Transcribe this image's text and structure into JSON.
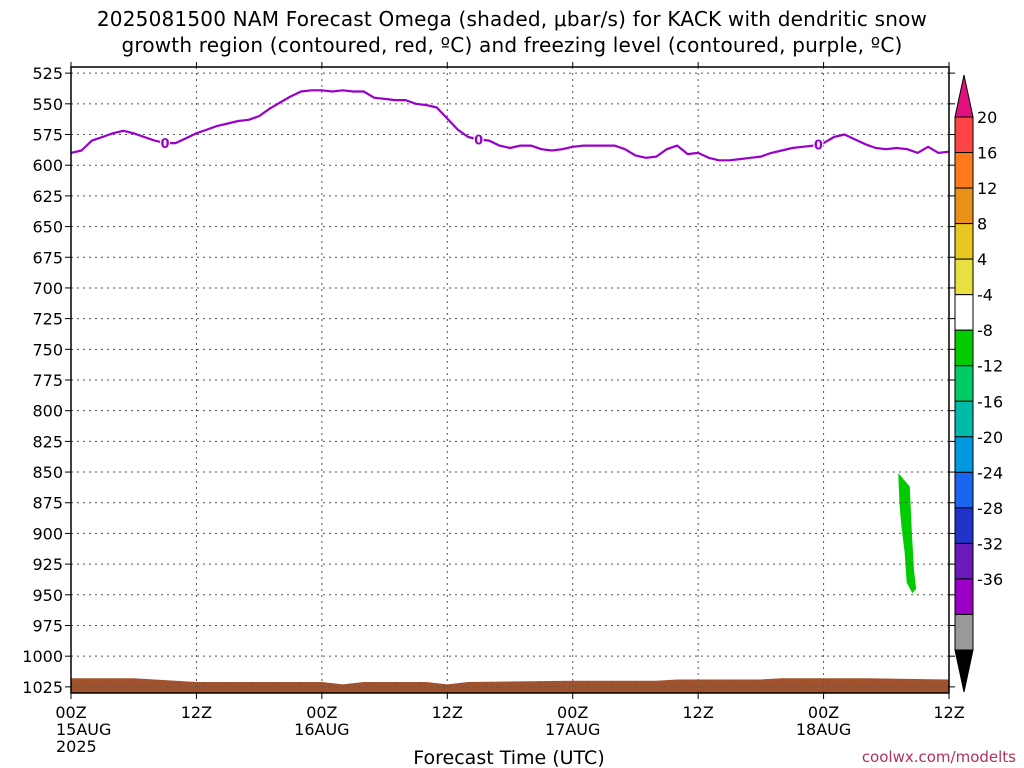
{
  "title_line1": "2025081500 NAM Forecast Omega (shaded, μbar/s) for KACK with dendritic snow",
  "title_line2": "growth region (contoured, red, ºC) and freezing level (contoured, purple, ºC)",
  "credit": "coolwx.com/modelts",
  "chart_data": {
    "type": "contour",
    "xlabel": "Forecast Time (UTC)",
    "ylabel": "",
    "x_range_hours": [
      0,
      84
    ],
    "y_range_hPa": [
      1030,
      520
    ],
    "y_axis_inverted": true,
    "grid": true,
    "y_ticks": [
      525,
      550,
      575,
      600,
      625,
      650,
      675,
      700,
      725,
      750,
      775,
      800,
      825,
      850,
      875,
      900,
      925,
      950,
      975,
      1000,
      1025
    ],
    "x_ticks": [
      {
        "hour": 0,
        "label": "00Z",
        "sub": "15AUG",
        "sub2": "2025"
      },
      {
        "hour": 12,
        "label": "12Z",
        "sub": "",
        "sub2": ""
      },
      {
        "hour": 24,
        "label": "00Z",
        "sub": "16AUG",
        "sub2": ""
      },
      {
        "hour": 36,
        "label": "12Z",
        "sub": "",
        "sub2": ""
      },
      {
        "hour": 48,
        "label": "00Z",
        "sub": "17AUG",
        "sub2": ""
      },
      {
        "hour": 60,
        "label": "12Z",
        "sub": "",
        "sub2": ""
      },
      {
        "hour": 72,
        "label": "00Z",
        "sub": "18AUG",
        "sub2": ""
      },
      {
        "hour": 84,
        "label": "12Z",
        "sub": "",
        "sub2": ""
      }
    ],
    "freezing_level": {
      "color": "#9900cc",
      "label": "0",
      "label_hours": [
        9,
        39,
        71.5
      ],
      "points": [
        [
          0,
          590
        ],
        [
          1,
          588
        ],
        [
          2,
          580
        ],
        [
          3,
          577
        ],
        [
          4,
          574
        ],
        [
          5,
          572
        ],
        [
          6,
          574
        ],
        [
          7,
          577
        ],
        [
          8,
          580
        ],
        [
          9,
          582
        ],
        [
          10,
          582
        ],
        [
          11,
          578
        ],
        [
          12,
          574
        ],
        [
          13,
          571
        ],
        [
          14,
          568
        ],
        [
          15,
          566
        ],
        [
          16,
          564
        ],
        [
          17,
          563
        ],
        [
          18,
          560
        ],
        [
          19,
          554
        ],
        [
          20,
          549
        ],
        [
          21,
          544
        ],
        [
          22,
          540
        ],
        [
          23,
          539
        ],
        [
          24,
          539
        ],
        [
          25,
          540
        ],
        [
          26,
          539
        ],
        [
          27,
          540
        ],
        [
          28,
          540
        ],
        [
          29,
          545
        ],
        [
          30,
          546
        ],
        [
          31,
          547
        ],
        [
          32,
          547
        ],
        [
          33,
          550
        ],
        [
          34,
          551
        ],
        [
          35,
          553
        ],
        [
          36,
          562
        ],
        [
          37,
          571
        ],
        [
          38,
          577
        ],
        [
          39,
          579
        ],
        [
          40,
          580
        ],
        [
          41,
          584
        ],
        [
          42,
          586
        ],
        [
          43,
          584
        ],
        [
          44,
          584
        ],
        [
          45,
          587
        ],
        [
          46,
          588
        ],
        [
          47,
          587
        ],
        [
          48,
          585
        ],
        [
          49,
          584
        ],
        [
          50,
          584
        ],
        [
          51,
          584
        ],
        [
          52,
          584
        ],
        [
          53,
          587
        ],
        [
          54,
          592
        ],
        [
          55,
          594
        ],
        [
          56,
          593
        ],
        [
          57,
          587
        ],
        [
          58,
          584
        ],
        [
          59,
          591
        ],
        [
          60,
          590
        ],
        [
          61,
          594
        ],
        [
          62,
          596
        ],
        [
          63,
          596
        ],
        [
          64,
          595
        ],
        [
          65,
          594
        ],
        [
          66,
          593
        ],
        [
          67,
          590
        ],
        [
          68,
          588
        ],
        [
          69,
          586
        ],
        [
          70,
          585
        ],
        [
          71,
          584
        ],
        [
          72,
          582
        ],
        [
          73,
          577
        ],
        [
          74,
          575
        ],
        [
          75,
          579
        ],
        [
          76,
          583
        ],
        [
          77,
          586
        ],
        [
          78,
          587
        ],
        [
          79,
          586
        ],
        [
          80,
          587
        ],
        [
          81,
          590
        ],
        [
          82,
          585
        ],
        [
          83,
          590
        ],
        [
          84,
          589
        ]
      ]
    },
    "omega_shading": [
      {
        "range": [
          -8,
          -4
        ],
        "color": "#00cc00",
        "outline": [
          [
            79.2,
            852
          ],
          [
            80.2,
            862
          ],
          [
            80.4,
            900
          ],
          [
            80.6,
            930
          ],
          [
            80.8,
            945
          ],
          [
            80.5,
            948
          ],
          [
            80.0,
            940
          ],
          [
            79.8,
            915
          ],
          [
            79.5,
            895
          ],
          [
            79.3,
            875
          ]
        ]
      }
    ],
    "terrain": {
      "color": "#a0522d",
      "note": "surface pressure (below-ground shading)",
      "points": [
        [
          0,
          1018
        ],
        [
          6,
          1018
        ],
        [
          10,
          1020
        ],
        [
          12,
          1021
        ],
        [
          18,
          1021
        ],
        [
          24,
          1021
        ],
        [
          26,
          1023
        ],
        [
          28,
          1021
        ],
        [
          34,
          1021
        ],
        [
          36,
          1023
        ],
        [
          38,
          1021
        ],
        [
          48,
          1020
        ],
        [
          56,
          1020
        ],
        [
          58,
          1019
        ],
        [
          66,
          1019
        ],
        [
          68,
          1018
        ],
        [
          76,
          1018
        ],
        [
          84,
          1019
        ]
      ]
    },
    "colorbar": {
      "labels": [
        "20",
        "16",
        "12",
        "8",
        "4",
        "-4",
        "-8",
        "-12",
        "-16",
        "-20",
        "-24",
        "-28",
        "-32",
        "-36"
      ],
      "colors": [
        "#ff4444",
        "#ff7a1a",
        "#e8901a",
        "#e8c820",
        "#e8e040",
        "#ffffff",
        "#00cc00",
        "#00cc66",
        "#00bbaa",
        "#0099dd",
        "#1a66ee",
        "#2233cc",
        "#6a1ab8",
        "#9a00c4",
        "#999999"
      ],
      "top_arrow_color": "#e0107e",
      "bottom_arrow_color": "#000000"
    }
  }
}
